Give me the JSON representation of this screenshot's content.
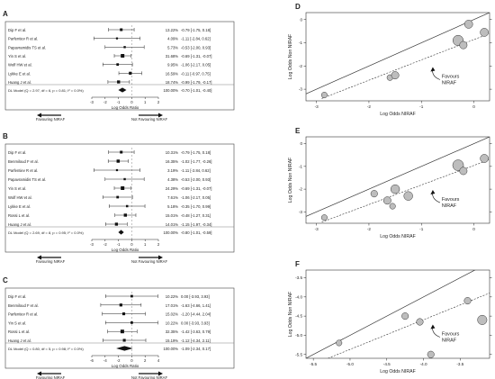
{
  "chart_data": [
    {
      "panel": "A",
      "type": "forest",
      "studies": [
        {
          "name": "Dip F et al.",
          "weight": "13.22%",
          "est": -0.79,
          "lo": -1.75,
          "hi": 0.18,
          "ci": "-0.79 [-1.75, 0.18]"
        },
        {
          "name": "Parfentiev R et al.",
          "weight": "4.09%",
          "est": -1.11,
          "lo": -2.84,
          "hi": 0.62,
          "ci": "-1.11 [-2.84, 0.62]"
        },
        {
          "name": "Papavramidis TS et al.",
          "weight": "5.73%",
          "est": -0.53,
          "lo": -2.0,
          "hi": 0.93,
          "ci": "-0.53 [-2.00, 0.93]"
        },
        {
          "name": "Yin S et al.",
          "weight": "31.68%",
          "est": -0.69,
          "lo": -1.31,
          "hi": -0.07,
          "ci": "-0.69 [-1.31, -0.07]"
        },
        {
          "name": "Wolf HW et al.",
          "weight": "9.95%",
          "est": -1.06,
          "lo": -2.17,
          "hi": 0.05,
          "ci": "-1.06 [-2.17, 0.05]"
        },
        {
          "name": "Lykke E et al.",
          "weight": "16.59%",
          "est": -0.11,
          "lo": -0.97,
          "hi": 0.75,
          "ci": "-0.11 [-0.97, 0.75]"
        },
        {
          "name": "Huang J et al.",
          "weight": "18.74%",
          "est": -0.99,
          "lo": -1.79,
          "hi": -0.17,
          "ci": "-0.99 [-1.79, -0.17]"
        }
      ],
      "model": {
        "label": "DL Model (Q = 2.97, df = 6, p = 0.81; I² = 0.0%)",
        "weight": "100.00%",
        "est": -0.7,
        "lo": -1.01,
        "hi": -0.4,
        "ci": "-0.70 [-1.01, -0.40]"
      },
      "xlim": [
        -3,
        2
      ],
      "ticks": [
        "-3",
        "-2",
        "-1",
        "0",
        "1",
        "2"
      ],
      "xlabel": "Log Odds Ratio",
      "arrow_left": "Favouring NIRAF",
      "arrow_right": "Not Favouring NIRAF"
    },
    {
      "panel": "B",
      "type": "forest",
      "studies": [
        {
          "name": "Dip F et al.",
          "weight": "10.31%",
          "est": -0.79,
          "lo": -1.75,
          "hi": 0.18,
          "ci": "-0.79 [-1.75, 0.18]"
        },
        {
          "name": "Benmiloud F et al.",
          "weight": "16.35%",
          "est": -1.02,
          "lo": -1.77,
          "hi": -0.26,
          "ci": "-1.02 [-1.77, -0.26]"
        },
        {
          "name": "Parfentiev R et al.",
          "weight": "3.19%",
          "est": -1.11,
          "lo": -2.84,
          "hi": 0.62,
          "ci": "-1.11 [-2.84, 0.62]"
        },
        {
          "name": "Papavramidis TS et al.",
          "weight": "4.38%",
          "est": -0.53,
          "lo": -2.0,
          "hi": 0.93,
          "ci": "-0.53 [-2.00, 0.93]"
        },
        {
          "name": "Yin S et al.",
          "weight": "24.29%",
          "est": -0.69,
          "lo": -1.31,
          "hi": -0.07,
          "ci": "-0.69 [-1.31, -0.07]"
        },
        {
          "name": "Wolf HW et al.",
          "weight": "7.61%",
          "est": -1.06,
          "lo": -2.17,
          "hi": 0.05,
          "ci": "-1.06 [-2.17, 0.05]"
        },
        {
          "name": "Lykke E et al.",
          "weight": "5.18%",
          "est": -0.35,
          "lo": -1.7,
          "hi": 0.99,
          "ci": "-0.35 [-1.70, 0.99]"
        },
        {
          "name": "Rossi L et al.",
          "weight": "15.01%",
          "est": -0.48,
          "lo": -1.27,
          "hi": 0.31,
          "ci": "-0.48 [-1.27, 0.31]"
        },
        {
          "name": "Huang J et al.",
          "weight": "14.01%",
          "est": -1.15,
          "lo": -1.97,
          "hi": -0.34,
          "ci": "-1.15 [-1.97, -0.34]"
        }
      ],
      "model": {
        "label": "DL Model (Q = 2.69, df = 8, p = 0.95; I² = 0.0%)",
        "weight": "100.00%",
        "est": -0.8,
        "lo": -1.01,
        "hi": -0.59,
        "ci": "-0.80 [-1.01, -0.59]"
      },
      "xlim": [
        -3,
        2
      ],
      "ticks": [
        "-3",
        "-2",
        "-1",
        "0",
        "1",
        "2"
      ],
      "xlabel": "Log Odds Ratio",
      "arrow_left": "Favouring NIRAF",
      "arrow_right": "Not Favouring NIRAF"
    },
    {
      "panel": "C",
      "type": "forest",
      "studies": [
        {
          "name": "Dip F et al.",
          "weight": "10.22%",
          "est": 0.0,
          "lo": -3.93,
          "hi": 3.93,
          "ci": "0.00 [-3.93, 3.93]"
        },
        {
          "name": "Benmiloud F et al.",
          "weight": "17.01%",
          "est": -1.63,
          "lo": -4.66,
          "hi": 1.41,
          "ci": "-1.63 [-4.66, 1.41]"
        },
        {
          "name": "Parfentiev R et al.",
          "weight": "15.02%",
          "est": -1.2,
          "lo": -4.44,
          "hi": 2.04,
          "ci": "-1.20 [-4.44, 2.04]"
        },
        {
          "name": "Yin S et al.",
          "weight": "10.22%",
          "est": 0.0,
          "lo": -3.93,
          "hi": 3.93,
          "ci": "0.00 [-3.93, 3.93]"
        },
        {
          "name": "Rossi L et al.",
          "weight": "32.35%",
          "est": -1.42,
          "lo": -3.63,
          "hi": 0.79,
          "ci": "-1.42 [-3.63, 0.79]"
        },
        {
          "name": "Huang J et al.",
          "weight": "15.19%",
          "est": -1.12,
          "lo": -4.34,
          "hi": 2.11,
          "ci": "-1.12 [-4.34, 2.11]"
        }
      ],
      "model": {
        "label": "DL Model (Q = 0.80, df = 5, p = 0.98; I² = 0.0%)",
        "weight": "100.00%",
        "est": -1.09,
        "lo": -2.34,
        "hi": 0.17,
        "ci": "-1.09 [-2.34, 0.17]"
      },
      "xlim": [
        -6,
        4
      ],
      "ticks": [
        "-6",
        "-4",
        "-2",
        "0",
        "2",
        "4"
      ],
      "xlabel": "Log Odds Ratio",
      "arrow_left": "Favouring NIRAF",
      "arrow_right": "Not Favouring NIRAF"
    },
    {
      "panel": "D",
      "type": "scatter",
      "xlabel": "Log Odds  NIRAF",
      "ylabel": "Log Odds Non NIRAF",
      "xlim": [
        -3.2,
        0.3
      ],
      "ylim": [
        -3.5,
        0.3
      ],
      "xticks": [
        -3,
        -2,
        -1,
        0
      ],
      "yticks": [
        -3,
        -2,
        -1,
        0
      ],
      "points": [
        {
          "x": -2.85,
          "y": -3.25,
          "w": 2
        },
        {
          "x": -1.6,
          "y": -2.5,
          "w": 2
        },
        {
          "x": -1.5,
          "y": -2.4,
          "w": 4
        },
        {
          "x": -0.3,
          "y": -0.9,
          "w": 9
        },
        {
          "x": -0.2,
          "y": -1.1,
          "w": 4
        },
        {
          "x": -0.1,
          "y": -0.2,
          "w": 5
        },
        {
          "x": 0.2,
          "y": -0.55,
          "w": 5
        }
      ],
      "fit": {
        "x1": -2.9,
        "y1": -3.4,
        "x2": 0.3,
        "y2": -0.6
      },
      "annotation": [
        "Favours",
        "NIRAF"
      ]
    },
    {
      "panel": "E",
      "type": "scatter",
      "xlabel": "Log Odds  NIRAF",
      "ylabel": "Log Odds Non NIRAF",
      "xlim": [
        -3.2,
        0.3
      ],
      "ylim": [
        -3.5,
        0.3
      ],
      "xticks": [
        -3,
        -2,
        -1,
        0
      ],
      "yticks": [
        -3,
        -2,
        -1,
        0
      ],
      "points": [
        {
          "x": -2.85,
          "y": -3.25,
          "w": 2
        },
        {
          "x": -1.9,
          "y": -2.2,
          "w": 3
        },
        {
          "x": -1.65,
          "y": -2.5,
          "w": 4
        },
        {
          "x": -1.55,
          "y": -2.75,
          "w": 2
        },
        {
          "x": -1.5,
          "y": -2.0,
          "w": 6
        },
        {
          "x": -1.25,
          "y": -2.3,
          "w": 6
        },
        {
          "x": -0.3,
          "y": -0.95,
          "w": 10
        },
        {
          "x": -0.2,
          "y": -1.2,
          "w": 4
        },
        {
          "x": 0.2,
          "y": -0.65,
          "w": 5
        }
      ],
      "fit": {
        "x1": -2.9,
        "y1": -3.45,
        "x2": 0.3,
        "y2": -0.7
      },
      "annotation": [
        "Favours",
        "NIRAF"
      ]
    },
    {
      "panel": "F",
      "type": "scatter",
      "xlabel": "Log Odds  NIRAF",
      "ylabel": "Log Odds Non NIRAF",
      "xlim": [
        -5.6,
        -3.1
      ],
      "ylim": [
        -5.6,
        -3.3
      ],
      "xticks": [
        -5.5,
        -5.0,
        -4.5,
        -4.0,
        -3.5
      ],
      "yticks": [
        -5.5,
        -5.0,
        -4.5,
        -4.0,
        -3.5
      ],
      "tickLabels": [
        "-5.5",
        "-5.0",
        "-4.5",
        "-4.0",
        "-3.5"
      ],
      "points": [
        {
          "x": -5.15,
          "y": -5.2,
          "w": 2
        },
        {
          "x": -4.25,
          "y": -4.5,
          "w": 3
        },
        {
          "x": -4.05,
          "y": -4.65,
          "w": 3
        },
        {
          "x": -3.9,
          "y": -5.5,
          "w": 3
        },
        {
          "x": -3.4,
          "y": -4.1,
          "w": 3
        },
        {
          "x": -3.2,
          "y": -4.6,
          "w": 7
        }
      ],
      "fit": {
        "x1": -5.3,
        "y1": -5.6,
        "x2": -3.1,
        "y2": -3.9
      },
      "annotation": [
        "Favours",
        "NIRAF"
      ]
    }
  ]
}
